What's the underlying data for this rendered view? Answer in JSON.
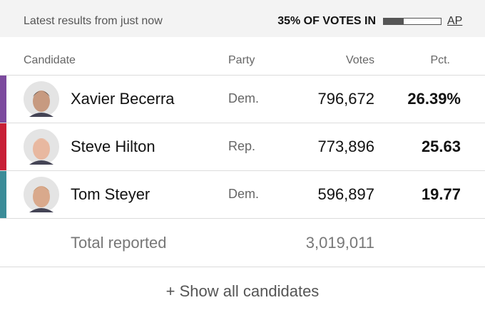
{
  "header": {
    "status": "Latest results from just now",
    "reporting_label": "35% OF VOTES IN",
    "reporting_value": 35,
    "source": "AP"
  },
  "table": {
    "columns": [
      "Candidate",
      "Party",
      "Votes",
      "Pct."
    ],
    "rows": [
      {
        "name": "Xavier Becerra",
        "party": "Dem.",
        "votes": "796,672",
        "pct": "26.39%",
        "color": "#7c4a9e"
      },
      {
        "name": "Steve Hilton",
        "party": "Rep.",
        "votes": "773,896",
        "pct": "25.63",
        "color": "#c81f36"
      },
      {
        "name": "Tom Steyer",
        "party": "Dem.",
        "votes": "596,897",
        "pct": "19.77",
        "color": "#3b8c98"
      }
    ],
    "total": {
      "label": "Total reported",
      "votes": "3,019,011"
    }
  },
  "footer": {
    "button": "+ Show all candidates"
  }
}
